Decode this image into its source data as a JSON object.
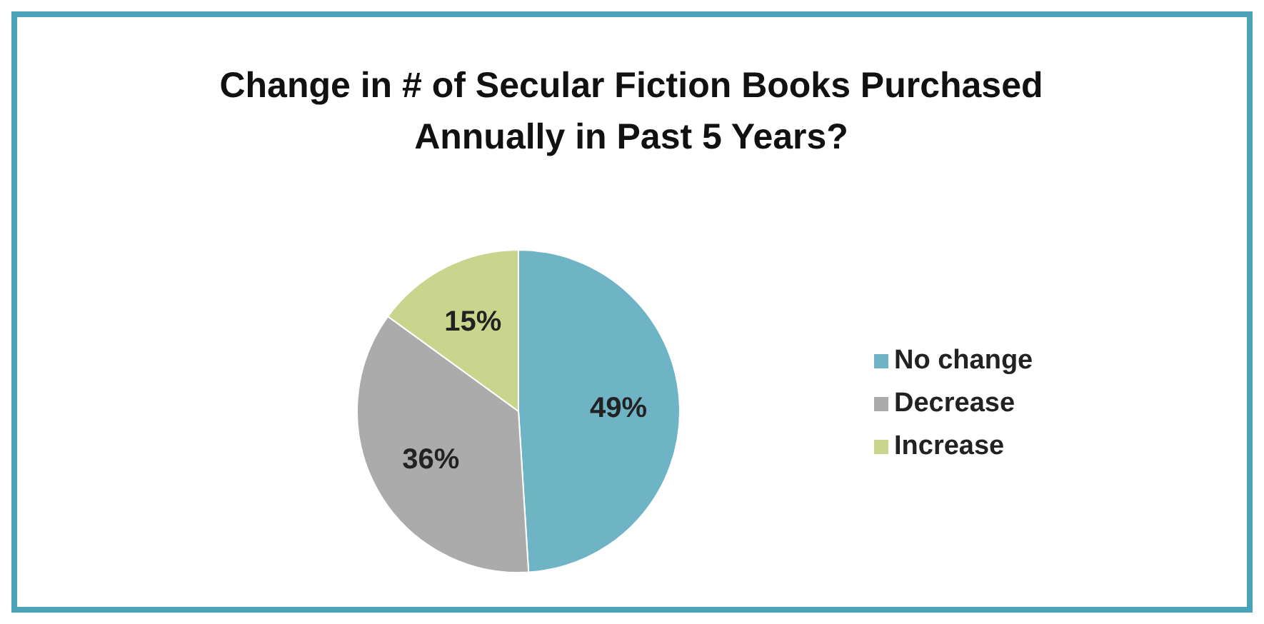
{
  "chart_data": {
    "type": "pie",
    "title": "Change in # of Secular Fiction Books Purchased Annually in Past 5 Years?",
    "categories": [
      "No change",
      "Decrease",
      "Increase"
    ],
    "values": [
      49,
      36,
      15
    ],
    "colors": [
      "#6fb4c4",
      "#ababab",
      "#c9d48c"
    ],
    "value_labels": [
      "49%",
      "36%",
      "15%"
    ],
    "legend": "right"
  }
}
